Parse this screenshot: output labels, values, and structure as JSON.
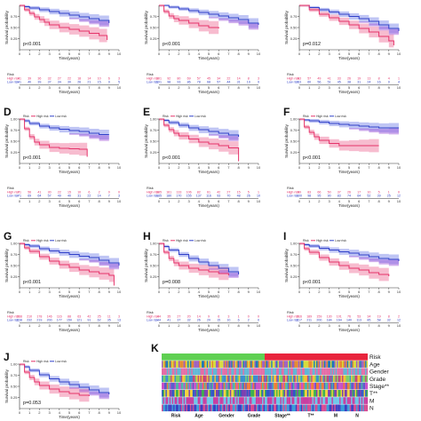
{
  "colors": {
    "high": "#e5336a",
    "high_band": "#f4a6bf",
    "low": "#3041c9",
    "low_band": "#a9b1f0",
    "overlap": "#9c4fd6",
    "axis": "#333333"
  },
  "axis_text": {
    "ylabel": "Survival probability",
    "xlabel": "Time(years)",
    "risk_label": "Risk",
    "risk_rows": [
      "High risk",
      "Low risk"
    ]
  },
  "chart_data": [
    {
      "type": "line",
      "panel": "A",
      "show_letter": false,
      "pvalue": "p<0.001",
      "legend": [],
      "xlim": [
        0,
        10
      ],
      "ylim": [
        0,
        1
      ],
      "yticks": [
        0.25,
        0.5,
        0.75
      ],
      "series": [
        {
          "name": "High risk",
          "x": [
            0,
            0.5,
            1,
            1.5,
            2,
            2.5,
            3,
            4,
            5,
            6,
            7,
            8,
            8.8
          ],
          "y": [
            1,
            0.9,
            0.82,
            0.74,
            0.68,
            0.62,
            0.56,
            0.5,
            0.46,
            0.42,
            0.37,
            0.32,
            0.22
          ]
        },
        {
          "name": "Low risk",
          "x": [
            0,
            0.5,
            1,
            2,
            3,
            4,
            5,
            6,
            7,
            8,
            9
          ],
          "y": [
            1,
            0.97,
            0.94,
            0.9,
            0.86,
            0.82,
            0.78,
            0.74,
            0.7,
            0.66,
            0.6
          ]
        }
      ],
      "risk_table": {
        "High risk": [
          41,
          39,
          36,
          32,
          27,
          22,
          18,
          14,
          10,
          6,
          3
        ],
        "Low risk": [
          41,
          40,
          39,
          37,
          34,
          30,
          26,
          21,
          15,
          9,
          5
        ]
      }
    },
    {
      "type": "line",
      "panel": "B",
      "show_letter": false,
      "pvalue": "p<0.001",
      "legend": [],
      "xlim": [
        0,
        10
      ],
      "ylim": [
        0,
        1
      ],
      "yticks": [
        0.25,
        0.5,
        0.75
      ],
      "series": [
        {
          "name": "High risk",
          "x": [
            0,
            0.5,
            1,
            1.5,
            2,
            3,
            4,
            5,
            6
          ],
          "y": [
            1,
            0.86,
            0.76,
            0.7,
            0.66,
            0.6,
            0.54,
            0.5,
            0.48
          ]
        },
        {
          "name": "Low risk",
          "x": [
            0,
            1,
            2,
            3,
            4,
            5,
            6,
            7,
            8,
            9,
            10
          ],
          "y": [
            1,
            0.96,
            0.92,
            0.88,
            0.84,
            0.8,
            0.76,
            0.72,
            0.68,
            0.6,
            0.56
          ]
        }
      ],
      "risk_table": {
        "High risk": [
          101,
          92,
          80,
          69,
          57,
          45,
          34,
          22,
          14,
          8,
          3
        ],
        "Low risk": [
          101,
          98,
          93,
          86,
          78,
          68,
          57,
          44,
          31,
          19,
          9
        ]
      }
    },
    {
      "type": "line",
      "panel": "C",
      "show_letter": false,
      "pvalue": "p=0.012",
      "legend": [],
      "xlim": [
        0,
        10
      ],
      "ylim": [
        0,
        1
      ],
      "yticks": [
        0.25,
        0.5,
        0.75
      ],
      "series": [
        {
          "name": "High risk",
          "x": [
            0,
            1,
            2,
            3,
            4,
            5,
            6,
            7,
            8,
            9,
            9.5
          ],
          "y": [
            1,
            0.9,
            0.8,
            0.72,
            0.64,
            0.56,
            0.48,
            0.4,
            0.3,
            0.2,
            0.1
          ]
        },
        {
          "name": "Low risk",
          "x": [
            0,
            1,
            2,
            3,
            4,
            5,
            6,
            7,
            8,
            9,
            10
          ],
          "y": [
            1,
            0.95,
            0.9,
            0.85,
            0.8,
            0.75,
            0.7,
            0.64,
            0.56,
            0.48,
            0.42
          ]
        }
      ],
      "risk_table": {
        "High risk": [
          63,
          57,
          49,
          41,
          33,
          26,
          19,
          13,
          8,
          4,
          1
        ],
        "Low risk": [
          63,
          60,
          56,
          51,
          45,
          38,
          31,
          24,
          16,
          9,
          4
        ]
      }
    },
    {
      "type": "line",
      "panel": "D",
      "show_letter": true,
      "pvalue": "p<0.001",
      "legend": [
        "Risk",
        "High risk",
        "Low risk"
      ],
      "xlim": [
        0,
        10
      ],
      "ylim": [
        0,
        1
      ],
      "yticks": [
        0.25,
        0.5,
        0.75,
        1.0
      ],
      "series": [
        {
          "name": "High risk",
          "x": [
            0,
            0.5,
            1,
            1.5,
            2,
            3,
            4,
            5,
            6,
            6.8
          ],
          "y": [
            1,
            0.78,
            0.6,
            0.48,
            0.42,
            0.36,
            0.34,
            0.33,
            0.32,
            0.15
          ]
        },
        {
          "name": "Low risk",
          "x": [
            0,
            0.5,
            1,
            2,
            3,
            4,
            5,
            6,
            7,
            8,
            9
          ],
          "y": [
            1,
            0.96,
            0.9,
            0.84,
            0.8,
            0.77,
            0.74,
            0.72,
            0.68,
            0.65,
            0.65
          ]
        }
      ],
      "risk_table": {
        "High risk": [
          71,
          56,
          41,
          30,
          22,
          15,
          10,
          6,
          2,
          0,
          0
        ],
        "Low risk": [
          71,
          69,
          64,
          57,
          49,
          40,
          31,
          22,
          14,
          7,
          3
        ]
      }
    },
    {
      "type": "line",
      "panel": "E",
      "show_letter": true,
      "pvalue": "p<0.001",
      "legend": [
        "Risk",
        "High risk",
        "Low risk"
      ],
      "xlim": [
        0,
        10
      ],
      "ylim": [
        0,
        1
      ],
      "yticks": [
        0.25,
        0.5,
        0.75,
        1.0
      ],
      "series": [
        {
          "name": "High risk",
          "x": [
            0,
            0.5,
            1,
            1.5,
            2,
            3,
            4,
            5,
            6,
            7,
            8
          ],
          "y": [
            1,
            0.86,
            0.76,
            0.68,
            0.62,
            0.55,
            0.48,
            0.44,
            0.4,
            0.35,
            0.05
          ]
        },
        {
          "name": "Low risk",
          "x": [
            0,
            0.5,
            1,
            2,
            3,
            4,
            5,
            6,
            7,
            8
          ],
          "y": [
            1,
            0.97,
            0.92,
            0.86,
            0.8,
            0.76,
            0.72,
            0.68,
            0.64,
            0.6
          ]
        }
      ],
      "risk_table": {
        "High risk": [
          185,
          161,
          133,
          106,
          82,
          61,
          42,
          27,
          15,
          5,
          1
        ],
        "Low risk": [
          185,
          180,
          170,
          155,
          137,
          116,
          93,
          70,
          48,
          26,
          10
        ]
      }
    },
    {
      "type": "line",
      "panel": "F",
      "show_letter": true,
      "pvalue": "p<0.001",
      "legend": [
        "Risk",
        "High risk",
        "Low risk"
      ],
      "xlim": [
        0,
        10
      ],
      "ylim": [
        0,
        1
      ],
      "yticks": [
        0.25,
        0.5,
        0.75,
        1.0
      ],
      "series": [
        {
          "name": "High risk",
          "x": [
            0,
            0.5,
            1,
            1.5,
            2,
            3,
            4,
            5,
            6,
            7,
            8
          ],
          "y": [
            1,
            0.82,
            0.7,
            0.6,
            0.52,
            0.45,
            0.4,
            0.4,
            0.4,
            0.4,
            0.4
          ]
        },
        {
          "name": "Low risk",
          "x": [
            0,
            0.5,
            1,
            2,
            3,
            4,
            5,
            6,
            7,
            8,
            9,
            10
          ],
          "y": [
            1,
            0.98,
            0.96,
            0.93,
            0.9,
            0.88,
            0.86,
            0.84,
            0.82,
            0.8,
            0.8,
            0.8
          ]
        }
      ],
      "risk_table": {
        "High risk": [
          99,
          83,
          66,
          50,
          37,
          26,
          17,
          10,
          5,
          1,
          0
        ],
        "Low risk": [
          100,
          98,
          95,
          90,
          83,
          74,
          64,
          52,
          39,
          25,
          12
        ]
      }
    },
    {
      "type": "line",
      "panel": "G",
      "show_letter": true,
      "pvalue": "p<0.001",
      "legend": [
        "Risk",
        "High risk",
        "Low risk"
      ],
      "xlim": [
        0,
        10
      ],
      "ylim": [
        0,
        1
      ],
      "yticks": [
        0.25,
        0.5,
        0.75,
        1.0
      ],
      "series": [
        {
          "name": "High risk",
          "x": [
            0,
            0.5,
            1,
            2,
            3,
            4,
            5,
            6,
            7,
            8,
            9,
            9.5
          ],
          "y": [
            1,
            0.9,
            0.82,
            0.7,
            0.6,
            0.52,
            0.46,
            0.4,
            0.36,
            0.32,
            0.28,
            0.05
          ]
        },
        {
          "name": "Low risk",
          "x": [
            0,
            0.5,
            1,
            2,
            3,
            4,
            5,
            6,
            7,
            8,
            9,
            10
          ],
          "y": [
            1,
            0.97,
            0.94,
            0.88,
            0.83,
            0.79,
            0.75,
            0.71,
            0.68,
            0.62,
            0.56,
            0.5
          ]
        }
      ],
      "risk_table": {
        "High risk": [
          238,
          210,
          178,
          146,
          116,
          88,
          63,
          42,
          25,
          11,
          3
        ],
        "Low risk": [
          238,
          232,
          219,
          200,
          177,
          150,
          121,
          91,
          62,
          35,
          13
        ]
      }
    },
    {
      "type": "line",
      "panel": "H",
      "show_letter": true,
      "pvalue": "p=0.008",
      "legend": [
        "Risk",
        "High risk",
        "Low risk"
      ],
      "xlim": [
        0,
        10
      ],
      "ylim": [
        0,
        1
      ],
      "yticks": [
        0.25,
        0.5,
        0.75,
        1.0
      ],
      "series": [
        {
          "name": "High risk",
          "x": [
            0,
            0.5,
            1,
            1.5,
            2,
            3,
            4,
            5,
            6,
            7
          ],
          "y": [
            1,
            0.8,
            0.66,
            0.56,
            0.5,
            0.44,
            0.4,
            0.36,
            0.32,
            0.28
          ]
        },
        {
          "name": "Low risk",
          "x": [
            0,
            0.5,
            1,
            2,
            3,
            4,
            5,
            6,
            7,
            8
          ],
          "y": [
            1,
            0.93,
            0.85,
            0.75,
            0.66,
            0.58,
            0.5,
            0.44,
            0.36,
            0.3
          ]
        }
      ],
      "risk_table": {
        "High risk": [
          44,
          35,
          27,
          20,
          14,
          9,
          6,
          3,
          1,
          0,
          0
        ],
        "Low risk": [
          44,
          41,
          37,
          32,
          26,
          20,
          15,
          10,
          6,
          2,
          0
        ]
      }
    },
    {
      "type": "line",
      "panel": "I",
      "show_letter": true,
      "pvalue": "p<0.001",
      "legend": [
        "Risk",
        "High risk",
        "Low risk"
      ],
      "xlim": [
        0,
        10
      ],
      "ylim": [
        0,
        1
      ],
      "yticks": [
        0.25,
        0.5,
        0.75,
        1.0
      ],
      "series": [
        {
          "name": "High risk",
          "x": [
            0,
            0.5,
            1,
            2,
            3,
            4,
            5,
            6,
            7,
            8,
            9
          ],
          "y": [
            1,
            0.88,
            0.8,
            0.68,
            0.58,
            0.5,
            0.44,
            0.4,
            0.34,
            0.3,
            0.26
          ]
        },
        {
          "name": "Low risk",
          "x": [
            0,
            0.5,
            1,
            2,
            3,
            4,
            5,
            6,
            7,
            8,
            9,
            10
          ],
          "y": [
            1,
            0.97,
            0.94,
            0.89,
            0.85,
            0.81,
            0.78,
            0.74,
            0.7,
            0.66,
            0.64,
            0.6
          ]
        }
      ],
      "risk_table": {
        "High risk": [
          216,
          189,
          159,
          130,
          101,
          76,
          53,
          34,
          19,
          8,
          2
        ],
        "Low risk": [
          217,
          211,
          200,
          184,
          164,
          140,
          113,
          85,
          58,
          32,
          12
        ]
      }
    },
    {
      "type": "line",
      "panel": "J",
      "show_letter": true,
      "pvalue": "p=0.053",
      "legend": [
        "Risk",
        "High risk",
        "Low risk"
      ],
      "xlim": [
        0,
        10
      ],
      "ylim": [
        0,
        1
      ],
      "yticks": [
        0.25,
        0.5,
        0.75,
        1.0
      ],
      "series": [
        {
          "name": "High risk",
          "x": [
            0,
            0.5,
            1,
            1.5,
            2,
            3,
            4,
            5,
            6,
            7
          ],
          "y": [
            1,
            0.82,
            0.7,
            0.6,
            0.52,
            0.44,
            0.38,
            0.34,
            0.3,
            0.28
          ]
        },
        {
          "name": "Low risk",
          "x": [
            0,
            0.5,
            1,
            2,
            3,
            4,
            5,
            6,
            7,
            8,
            9
          ],
          "y": [
            1,
            0.94,
            0.86,
            0.76,
            0.67,
            0.6,
            0.54,
            0.48,
            0.42,
            0.36,
            0.32
          ]
        }
      ],
      "risk_table": {
        "High risk": [],
        "Low risk": []
      }
    },
    {
      "type": "heatmap",
      "panel": "K",
      "show_letter": true,
      "rows": [
        "Risk",
        "Age",
        "Gender",
        "Grade",
        "Stage**",
        "T**",
        "M",
        "N"
      ],
      "bottom_labels": [
        "Risk",
        "Age",
        "Gender",
        "Grade",
        "Stage**",
        "T**",
        "M",
        "N"
      ],
      "risk_groups": [
        {
          "name": "Low risk",
          "color": "#5fd052",
          "fraction": 0.5
        },
        {
          "name": "High risk",
          "color": "#e8243c",
          "fraction": 0.5
        }
      ],
      "row_palettes": {
        "Age": [
          "#1f7ab5",
          "#e58a2e",
          "#9b5fc0",
          "#d7dc3d"
        ],
        "Gender": [
          "#e46ca6",
          "#5fb7d6"
        ],
        "Grade": [
          "#f1c232",
          "#7bcf63",
          "#c1467e",
          "#3a8fd0"
        ],
        "Stage**": [
          "#5a5acb",
          "#f07a34",
          "#48b6a8",
          "#c94fc6"
        ],
        "T**": [
          "#2f58c6",
          "#f2d33a",
          "#7b3fb0",
          "#3eb04e"
        ],
        "M": [
          "#c83fa1",
          "#6cc6e8"
        ],
        "N": [
          "#3c3ec2",
          "#d44a93",
          "#3a9bd8"
        ]
      }
    }
  ]
}
